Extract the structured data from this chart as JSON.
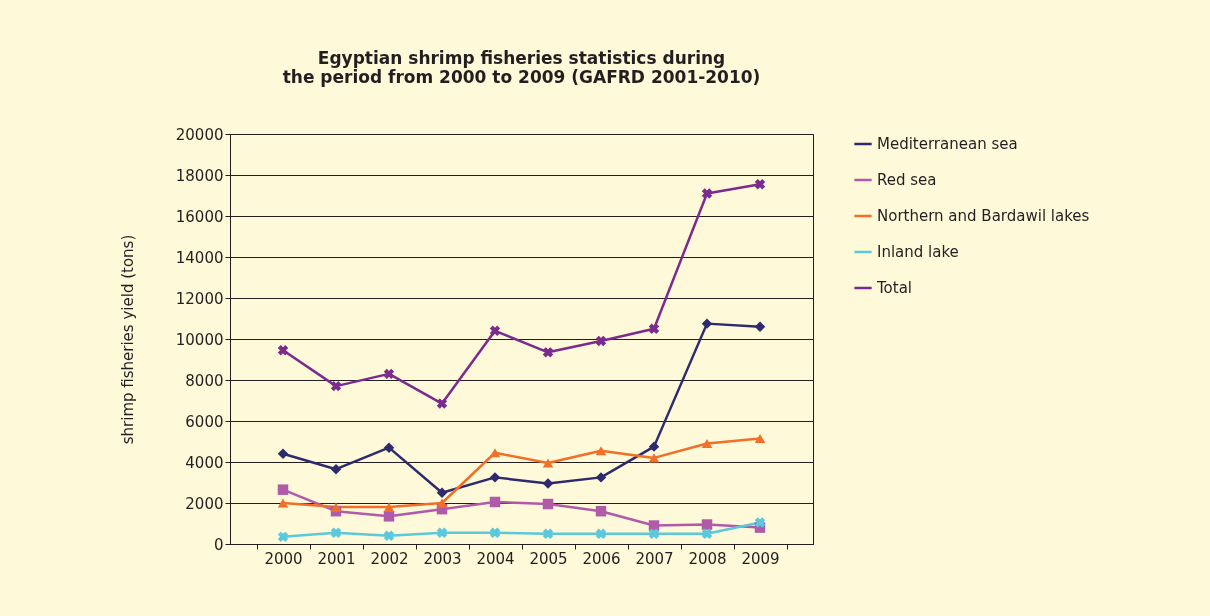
{
  "chart_data": {
    "type": "line",
    "title": "Egyptian shrimp fisheries statistics during the period from 2000 to 2009 (GAFRD 2001-2010)",
    "ylabel": "shrimp fisheries yield (tons)",
    "categories": [
      "2000",
      "2001",
      "2002",
      "2003",
      "2004",
      "2005",
      "2006",
      "2007",
      "2008",
      "2009"
    ],
    "series": [
      {
        "name": "Mediterranean sea",
        "color": "#2e2a6e",
        "marker": "diamond",
        "values": [
          4400,
          3650,
          4700,
          2500,
          3250,
          2950,
          3250,
          4750,
          10750,
          10600
        ]
      },
      {
        "name": "Red sea",
        "color": "#b05aaa",
        "marker": "square",
        "values": [
          2650,
          1600,
          1350,
          1700,
          2050,
          1950,
          1600,
          900,
          950,
          800
        ]
      },
      {
        "name": "Northern and Bardawil lakes",
        "color": "#f26f2a",
        "marker": "triangle",
        "values": [
          2000,
          1800,
          1800,
          2000,
          4450,
          3950,
          4550,
          4200,
          4900,
          5150
        ]
      },
      {
        "name": "Inland lake",
        "color": "#5bc8dc",
        "marker": "cross",
        "values": [
          350,
          550,
          400,
          550,
          550,
          500,
          500,
          500,
          500,
          1050
        ]
      },
      {
        "name": "Total",
        "color": "#7b2a8e",
        "marker": "cross",
        "values": [
          9450,
          7700,
          8300,
          6850,
          10400,
          9350,
          9900,
          10500,
          17100,
          17550
        ]
      }
    ],
    "ylim": [
      0,
      20000
    ],
    "yticks": [
      0,
      2000,
      4000,
      6000,
      8000,
      10000,
      12000,
      14000,
      16000,
      18000,
      20000
    ],
    "grid": "y",
    "legend": "right",
    "line_style": "solid"
  }
}
